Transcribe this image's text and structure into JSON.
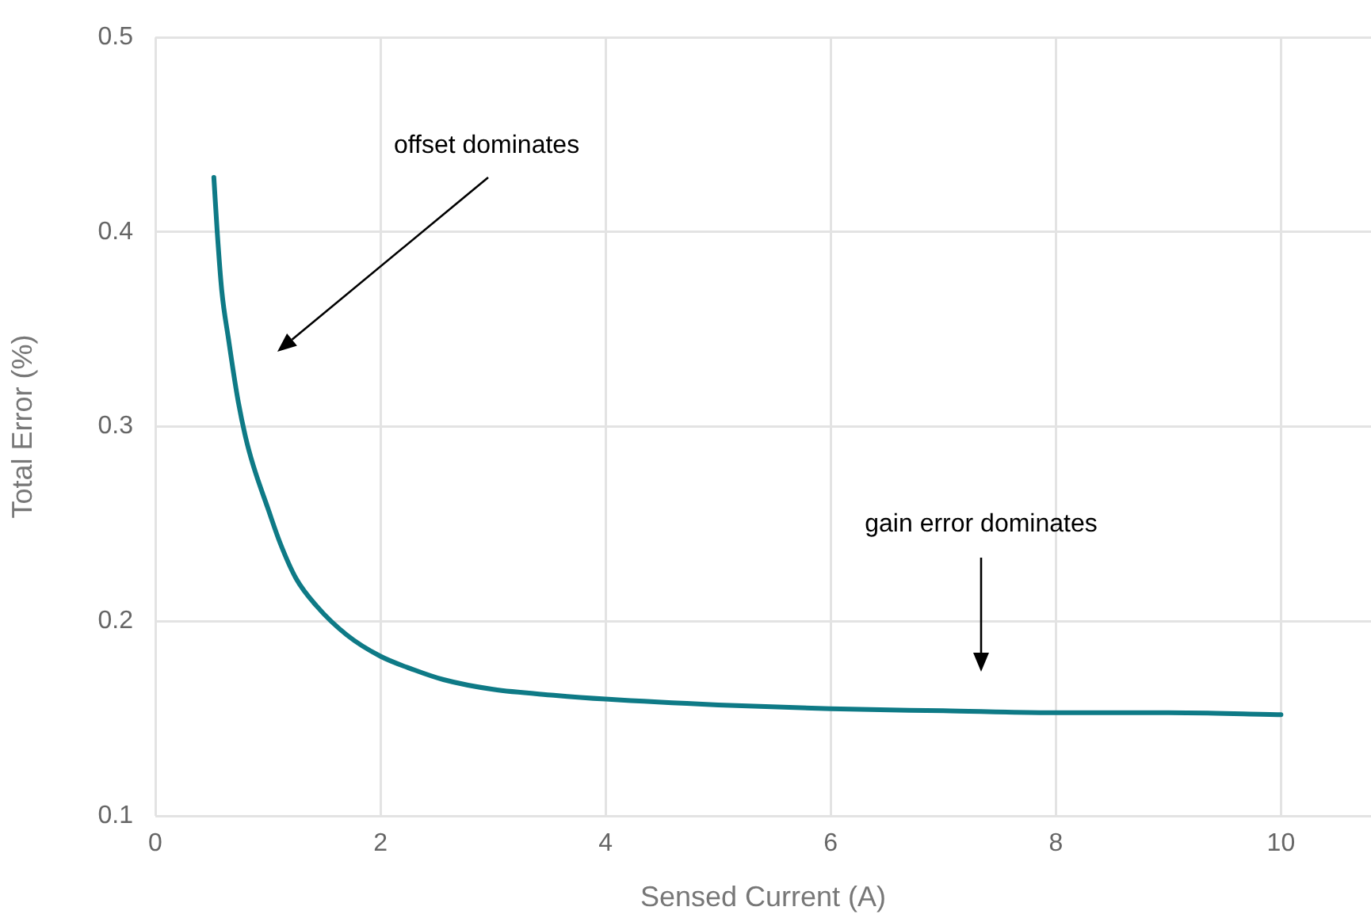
{
  "chart_data": {
    "type": "line",
    "xlabel": "Sensed Current (A)",
    "ylabel": "Total Error (%)",
    "x": [
      0.52,
      0.55,
      0.59,
      0.65,
      0.73,
      0.8,
      0.87,
      1.0,
      1.11,
      1.25,
      1.43,
      1.7,
      2.0,
      2.3,
      2.56,
      3.0,
      3.54,
      4.0,
      5.0,
      6.0,
      7.0,
      8.0,
      9.0,
      10.0
    ],
    "series": [
      {
        "color": "#0e7a86",
        "values": [
          0.428,
          0.4,
          0.37,
          0.345,
          0.315,
          0.295,
          0.28,
          0.258,
          0.24,
          0.222,
          0.208,
          0.193,
          0.182,
          0.175,
          0.17,
          0.165,
          0.162,
          0.16,
          0.157,
          0.155,
          0.154,
          0.153,
          0.153,
          0.152
        ]
      }
    ],
    "xlim": [
      0,
      10.8
    ],
    "xticks": [
      0,
      2,
      4,
      6,
      8,
      10
    ],
    "ylim": [
      0.1,
      0.5
    ],
    "yticks": [
      0.1,
      0.2,
      0.3,
      0.4,
      0.5
    ],
    "grid": true,
    "legend": false,
    "marker": "none",
    "line_style": "solid",
    "annotations": [
      "offset dominates",
      "gain error dominates"
    ]
  }
}
